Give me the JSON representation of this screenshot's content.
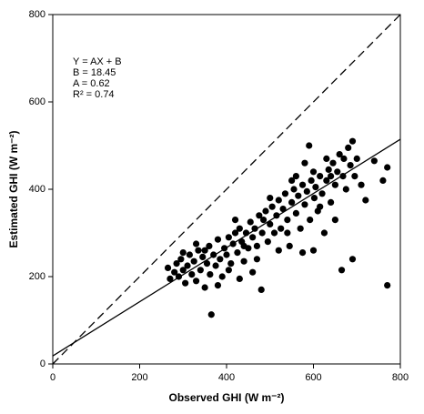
{
  "chart_data": {
    "type": "scatter",
    "xlabel": "Observed GHI (W m⁻²)",
    "ylabel": "Estimated GHI (W m⁻²)",
    "xlim": [
      0,
      800
    ],
    "ylim": [
      0,
      800
    ],
    "xticks": [
      0,
      200,
      400,
      600,
      800
    ],
    "yticks": [
      0,
      200,
      400,
      600,
      800
    ],
    "color": "#000000",
    "fit": {
      "equation": "Y = AX + B",
      "B": {
        "label": "B = 18.45",
        "value": 18.45
      },
      "A": {
        "label": "A = 0.62",
        "value": 0.62
      },
      "R2": {
        "label": "R² = 0.74",
        "value": 0.74
      }
    },
    "x": [
      265,
      270,
      280,
      285,
      290,
      295,
      300,
      305,
      310,
      315,
      320,
      325,
      330,
      335,
      340,
      345,
      350,
      355,
      360,
      362,
      365,
      370,
      375,
      380,
      385,
      390,
      395,
      400,
      405,
      410,
      415,
      420,
      425,
      430,
      435,
      440,
      445,
      450,
      455,
      460,
      465,
      470,
      475,
      480,
      482,
      485,
      490,
      495,
      500,
      505,
      510,
      515,
      520,
      525,
      530,
      535,
      540,
      545,
      550,
      555,
      560,
      565,
      570,
      575,
      580,
      585,
      590,
      592,
      595,
      600,
      602,
      605,
      610,
      615,
      620,
      625,
      630,
      635,
      640,
      645,
      650,
      655,
      660,
      665,
      668,
      670,
      675,
      680,
      685,
      690,
      695,
      700,
      720,
      740,
      760,
      770,
      770,
      690,
      710,
      650,
      575,
      520,
      460,
      430,
      380,
      350,
      330,
      300,
      420,
      500,
      560,
      630,
      540,
      470,
      405,
      440,
      600,
      615,
      550,
      580,
      640
    ],
    "y": [
      220,
      195,
      210,
      230,
      200,
      240,
      215,
      185,
      225,
      250,
      205,
      235,
      190,
      260,
      215,
      245,
      175,
      230,
      270,
      205,
      113,
      250,
      225,
      285,
      240,
      200,
      265,
      250,
      290,
      230,
      275,
      300,
      255,
      310,
      280,
      235,
      300,
      265,
      325,
      290,
      310,
      270,
      340,
      170,
      300,
      330,
      350,
      280,
      320,
      360,
      300,
      340,
      375,
      310,
      355,
      390,
      330,
      270,
      370,
      400,
      345,
      385,
      310,
      410,
      365,
      395,
      500,
      330,
      420,
      260,
      380,
      405,
      350,
      430,
      390,
      300,
      420,
      445,
      370,
      460,
      410,
      440,
      480,
      215,
      430,
      470,
      400,
      495,
      455,
      510,
      430,
      470,
      375,
      465,
      420,
      450,
      180,
      240,
      410,
      330,
      255,
      260,
      210,
      195,
      180,
      260,
      275,
      255,
      330,
      380,
      430,
      470,
      300,
      240,
      215,
      270,
      440,
      360,
      420,
      460,
      430
    ]
  }
}
